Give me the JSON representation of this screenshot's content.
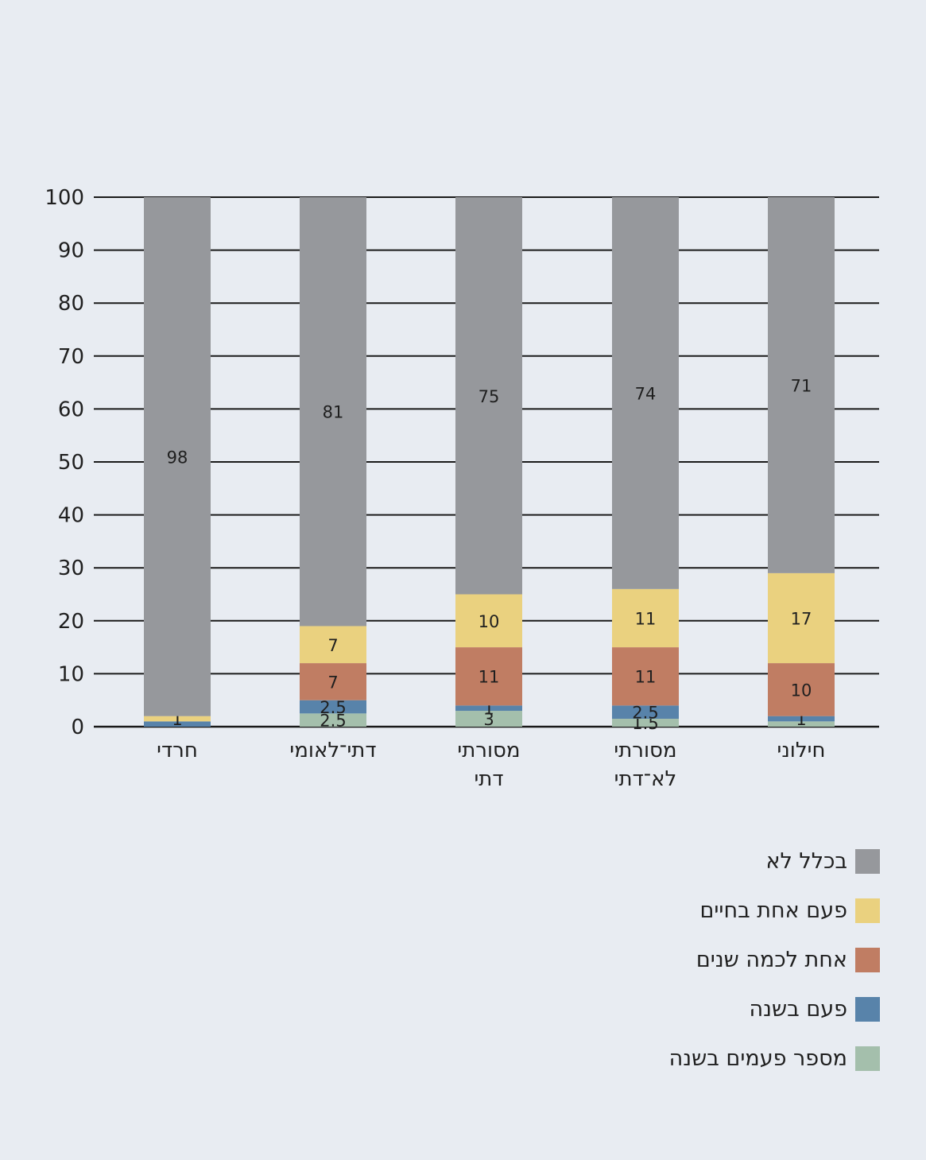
{
  "chart_data": {
    "type": "bar",
    "stacked": true,
    "categories": [
      "חרדי",
      "דתי־לאומי",
      "מסורתי דתי",
      "מסורתי לא־דתי",
      "חילוני"
    ],
    "category_lines": [
      [
        "חרדי"
      ],
      [
        "דתי־לאומי"
      ],
      [
        "מסורתי",
        "דתי"
      ],
      [
        "מסורתי",
        "לא־דתי"
      ],
      [
        "חילוני"
      ]
    ],
    "series": [
      {
        "name": "מספר פעמים בשנה",
        "color": "#a4bfac",
        "values": [
          0,
          2.5,
          3,
          1.5,
          1
        ],
        "labels": [
          "",
          "2.5",
          "3",
          "1.5",
          ""
        ]
      },
      {
        "name": "פעם בשנה",
        "color": "#5883aa",
        "values": [
          1,
          2.5,
          1,
          2.5,
          1
        ],
        "labels": [
          "",
          "2.5",
          "1",
          "2.5",
          "1"
        ]
      },
      {
        "name": "אחת לכמה שנים",
        "color": "#c07d63",
        "values": [
          0,
          7,
          11,
          11,
          10
        ],
        "labels": [
          "",
          "7",
          "11",
          "11",
          "10"
        ]
      },
      {
        "name": "פעם אחת בחיים",
        "color": "#ead17f",
        "values": [
          1,
          7,
          10,
          11,
          17
        ],
        "labels": [
          "1",
          "7",
          "10",
          "11",
          "17"
        ]
      },
      {
        "name": "בכלל לא",
        "color": "#96989c",
        "values": [
          98,
          81,
          75,
          74,
          71
        ],
        "labels": [
          "98",
          "81",
          "75",
          "74",
          "71"
        ]
      }
    ],
    "legend_order": [
      4,
      3,
      2,
      1,
      0
    ],
    "ylim": [
      0,
      100
    ],
    "yticks": [
      0,
      10,
      20,
      30,
      40,
      50,
      60,
      70,
      80,
      90,
      100
    ],
    "grid": true,
    "legend_position": "bottom-right"
  }
}
